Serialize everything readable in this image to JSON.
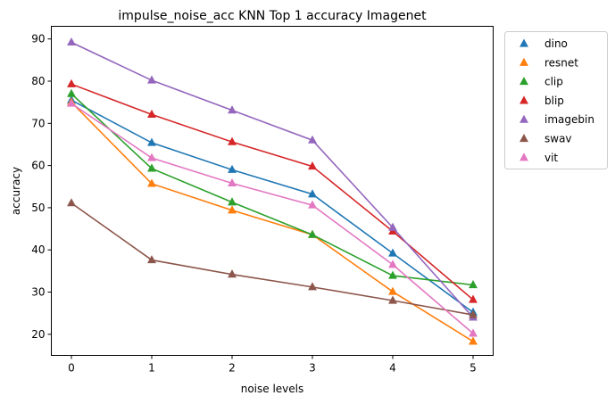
{
  "chart_data": {
    "type": "line",
    "title": "impulse_noise_acc KNN Top 1 accuracy Imagenet",
    "xlabel": "noise levels",
    "ylabel": "accuracy",
    "x": [
      0,
      1,
      2,
      3,
      4,
      5
    ],
    "xticks": [
      "0",
      "1",
      "2",
      "3",
      "4",
      "5"
    ],
    "yticks": [
      "20",
      "30",
      "40",
      "50",
      "60",
      "70",
      "80",
      "90"
    ],
    "xlim": [
      -0.25,
      5.25
    ],
    "ylim": [
      15,
      93
    ],
    "grid": false,
    "legend_position": "outside-right",
    "marker": "triangle",
    "series": [
      {
        "name": "dino",
        "color": "#1f77b4",
        "values": [
          75.5,
          65.4,
          59.0,
          53.2,
          39.2,
          25.2
        ]
      },
      {
        "name": "resnet",
        "color": "#ff7f0e",
        "values": [
          75.0,
          55.7,
          49.4,
          43.6,
          30.1,
          18.3
        ]
      },
      {
        "name": "clip",
        "color": "#2ca02c",
        "values": [
          77.0,
          59.3,
          51.3,
          43.6,
          33.9,
          31.7
        ]
      },
      {
        "name": "blip",
        "color": "#d62728",
        "values": [
          79.3,
          72.1,
          65.6,
          59.8,
          44.4,
          28.2
        ]
      },
      {
        "name": "imagebin",
        "color": "#9467bd",
        "values": [
          89.2,
          80.2,
          73.1,
          66.0,
          45.3,
          24.0
        ]
      },
      {
        "name": "swav",
        "color": "#8c564b",
        "values": [
          51.1,
          37.6,
          34.2,
          31.2,
          28.0,
          24.6
        ]
      },
      {
        "name": "vit",
        "color": "#e377c2",
        "values": [
          74.7,
          61.8,
          55.8,
          50.6,
          36.5,
          20.2
        ]
      }
    ]
  }
}
